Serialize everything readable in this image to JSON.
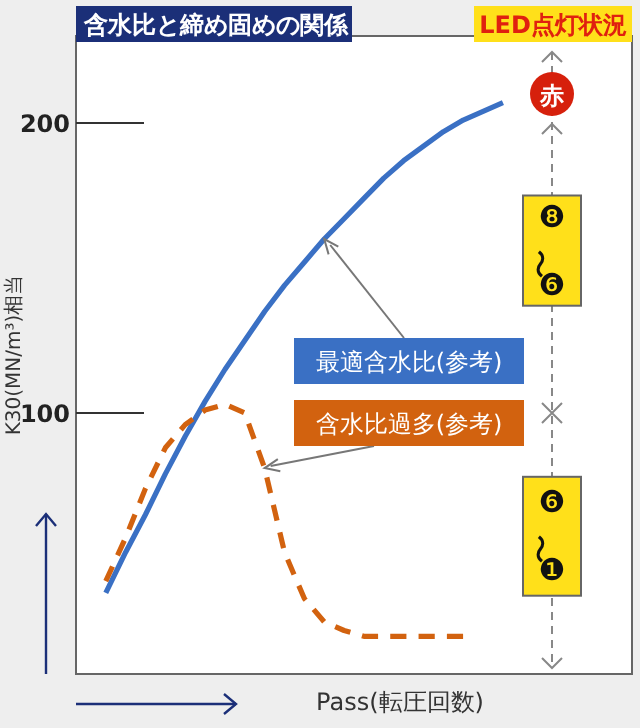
{
  "chart_data": {
    "type": "line",
    "title": "含水比と締め固めの関係",
    "xlabel": "Pass(転圧回数)",
    "ylabel": "K30(MN/m³)相当",
    "categories": [
      null,
      null,
      null,
      null,
      null,
      null,
      null,
      null,
      null,
      null,
      null,
      null,
      null,
      null,
      null,
      null,
      null,
      null,
      null,
      null,
      null,
      null,
      null,
      null,
      null,
      null,
      null,
      null
    ],
    "ylim": [
      10,
      230
    ],
    "yticks": [
      100,
      200
    ],
    "series": [
      {
        "name": "最適含水比(参考)",
        "color": "#3a70c4",
        "line_style": "solid",
        "values": [
          null,
          38,
          52,
          65,
          79,
          92,
          104,
          115,
          125,
          135,
          144,
          152,
          160,
          167,
          174,
          181,
          187,
          192,
          197,
          201,
          204,
          207,
          null,
          null,
          null,
          null,
          null,
          null
        ]
      },
      {
        "name": "含水比過多(参考)",
        "color": "#d2620f",
        "line_style": "dashed",
        "values": [
          null,
          42,
          57,
          74,
          88,
          96,
          101,
          103,
          100,
          81,
          52,
          36,
          28,
          25,
          23,
          23,
          23,
          23,
          23,
          23,
          null,
          null,
          null,
          null,
          null,
          null,
          null,
          null
        ]
      }
    ],
    "annotations": [
      "LED点灯状況",
      "赤",
      "❽〜❻",
      "❻〜❶"
    ]
  }
}
